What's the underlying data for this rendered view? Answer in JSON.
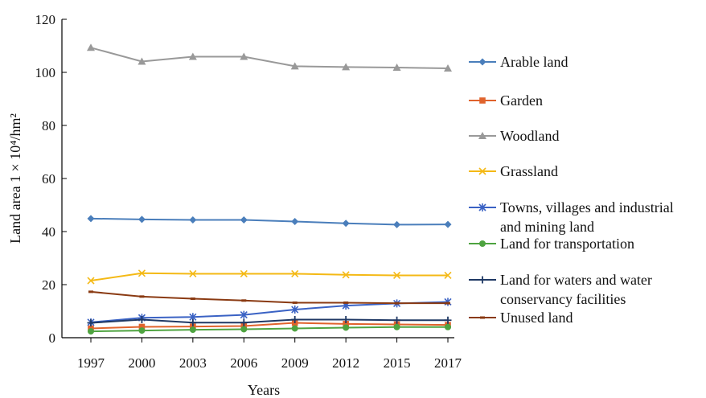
{
  "chart_data": {
    "type": "line",
    "xlabel": "Years",
    "ylabel": "Land area 1 × 10⁴/hm²",
    "categories": [
      "1997",
      "2000",
      "2003",
      "2006",
      "2009",
      "2012",
      "2015",
      "2017"
    ],
    "ylim": [
      0,
      120
    ],
    "yticks": [
      "0",
      "20",
      "40",
      "60",
      "80",
      "100",
      "120"
    ],
    "grid": false,
    "legend_position": "right",
    "series": [
      {
        "name": "Arable land",
        "color": "#4a7ebb",
        "marker": "diamond",
        "values": [
          44.9,
          44.6,
          44.4,
          44.4,
          43.8,
          43.1,
          42.6,
          42.7
        ]
      },
      {
        "name": "Garden",
        "color": "#e0632c",
        "marker": "square",
        "values": [
          3.5,
          4.1,
          4.2,
          4.4,
          5.6,
          5.2,
          5.0,
          4.8
        ]
      },
      {
        "name": "Woodland",
        "color": "#999999",
        "marker": "triangle",
        "values": [
          109.3,
          104.1,
          105.9,
          105.9,
          102.3,
          102.0,
          101.8,
          101.5
        ]
      },
      {
        "name": "Grassland",
        "color": "#f4b915",
        "marker": "x",
        "values": [
          21.5,
          24.3,
          24.1,
          24.1,
          24.1,
          23.7,
          23.5,
          23.5
        ]
      },
      {
        "name": "Towns, villages and industrial and mining land",
        "color": "#3a62c4",
        "marker": "star",
        "values": [
          5.8,
          7.5,
          7.8,
          8.6,
          10.6,
          12.1,
          12.9,
          13.5
        ]
      },
      {
        "name": "Land for transportation",
        "color": "#4ea340",
        "marker": "circle",
        "values": [
          2.4,
          2.7,
          3.0,
          3.2,
          3.5,
          3.8,
          4.0,
          4.0
        ]
      },
      {
        "name": "Land for waters and water conservancy facilities",
        "color": "#1f3864",
        "marker": "plus",
        "values": [
          5.6,
          6.8,
          5.7,
          5.7,
          6.8,
          6.8,
          6.6,
          6.6
        ]
      },
      {
        "name": "Unused land",
        "color": "#8a3a12",
        "marker": "dash",
        "values": [
          17.3,
          15.5,
          14.7,
          14.0,
          13.2,
          13.2,
          13.0,
          13.0
        ]
      }
    ],
    "legend_lines": [
      [
        "Arable land"
      ],
      [
        "Garden"
      ],
      [
        "Woodland"
      ],
      [
        "Grassland"
      ],
      [
        "Towns, villages and industrial",
        "and mining land"
      ],
      [
        "Land for transportation"
      ],
      [
        "Land for waters and water",
        "conservancy facilities"
      ],
      [
        "Unused land"
      ]
    ]
  }
}
